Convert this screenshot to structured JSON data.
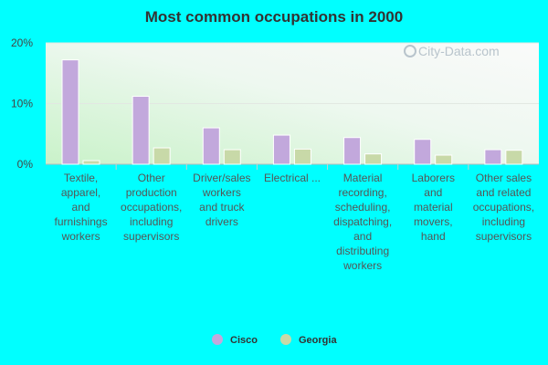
{
  "watermark": "City-Data.com",
  "chart_data": {
    "type": "bar",
    "title": "Most common occupations in 2000",
    "ylim": [
      0,
      20
    ],
    "yticks": [
      "0%",
      "10%",
      "20%"
    ],
    "categories": [
      "Textile, apparel, and furnishings workers",
      "Other production occupations, including supervisors",
      "Driver/sales workers and truck drivers",
      "Electrical ...",
      "Material recording, scheduling, dispatching, and distributing workers",
      "Laborers and material movers, hand",
      "Other sales and related occupations, including supervisors"
    ],
    "category_lines": [
      [
        "Textile,",
        "apparel,",
        "and",
        "furnishings",
        "workers"
      ],
      [
        "Other",
        "production",
        "occupations,",
        "including",
        "supervisors"
      ],
      [
        "Driver/sales",
        "workers",
        "and truck",
        "drivers"
      ],
      [
        "Electrical ..."
      ],
      [
        "Material",
        "recording,",
        "scheduling,",
        "dispatching,",
        "and",
        "distributing",
        "workers"
      ],
      [
        "Laborers",
        "and",
        "material",
        "movers,",
        "hand"
      ],
      [
        "Other sales",
        "and related",
        "occupations,",
        "including",
        "supervisors"
      ]
    ],
    "series": [
      {
        "name": "Cisco",
        "color": "#c2a8dc",
        "values": [
          17.2,
          11.2,
          6.0,
          4.8,
          4.4,
          4.1,
          2.4
        ]
      },
      {
        "name": "Georgia",
        "color": "#c8d9a8",
        "values": [
          0.6,
          2.7,
          2.4,
          2.5,
          1.7,
          1.5,
          2.3
        ]
      }
    ],
    "grid": true,
    "legend": "bottom"
  }
}
